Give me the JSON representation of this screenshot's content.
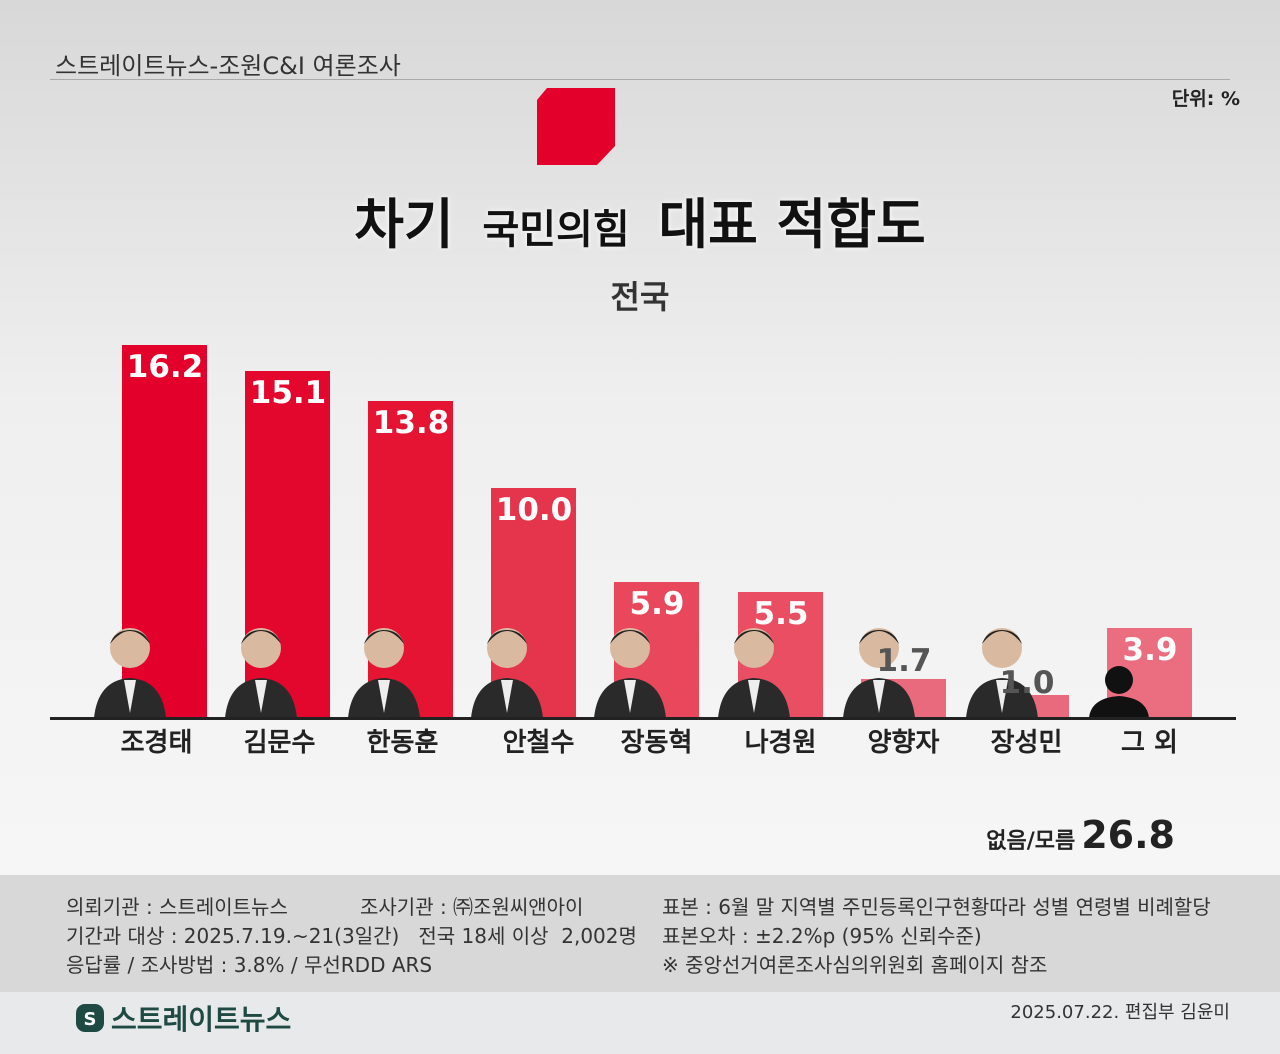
{
  "header": {
    "source": "스트레이트뉴스-조원C&I 여론조사",
    "unit": "단위: %"
  },
  "title": {
    "pre": "차기",
    "party": "국민의힘",
    "post": "대표 적합도"
  },
  "region": "전국",
  "chart_data": {
    "type": "bar",
    "title": "차기 국민의힘 대표 적합도",
    "subtitle": "전국",
    "unit": "%",
    "categories": [
      "조경태",
      "김문수",
      "한동훈",
      "안철수",
      "장동혁",
      "나경원",
      "양향자",
      "장성민",
      "그 외"
    ],
    "values": [
      16.2,
      15.1,
      13.8,
      10.0,
      5.9,
      5.5,
      1.7,
      1.0,
      3.9
    ],
    "value_labels": [
      "16.2",
      "15.1",
      "13.8",
      "10.0",
      "5.9",
      "5.5",
      "1.7",
      "1.0",
      "3.9"
    ],
    "colors": [
      "#e3002a",
      "#e3072e",
      "#e41432",
      "#e5354d",
      "#e8475c",
      "#e94e62",
      "#ea6a7d",
      "#ea6a7d",
      "#eb6e80"
    ],
    "ylim": [
      0,
      16.2
    ],
    "extra": {
      "label": "없음/모름",
      "value": "26.8"
    }
  },
  "footer": {
    "client": "의뢰기관 : 스트레이트뉴스",
    "agency": "조사기관 : ㈜조원씨앤아이",
    "period": "기간과 대상 : 2025.7.19.~21(3일간)   전국 18세 이상  2,002명",
    "method": "응답률 / 조사방법 : 3.8% / 무선RDD ARS",
    "sample": "표본 : 6월 말 지역별 주민등록인구현황따라 성별 연령별 비례할당",
    "error": "표본오차 : ±2.2%p (95% 신뢰수준)",
    "note": "※ 중앙선거여론조사심의위원회 홈페이지 참조"
  },
  "brand": {
    "name": "스트레이트뉴스",
    "date": "2025.07.22. 편집부 김윤미"
  }
}
